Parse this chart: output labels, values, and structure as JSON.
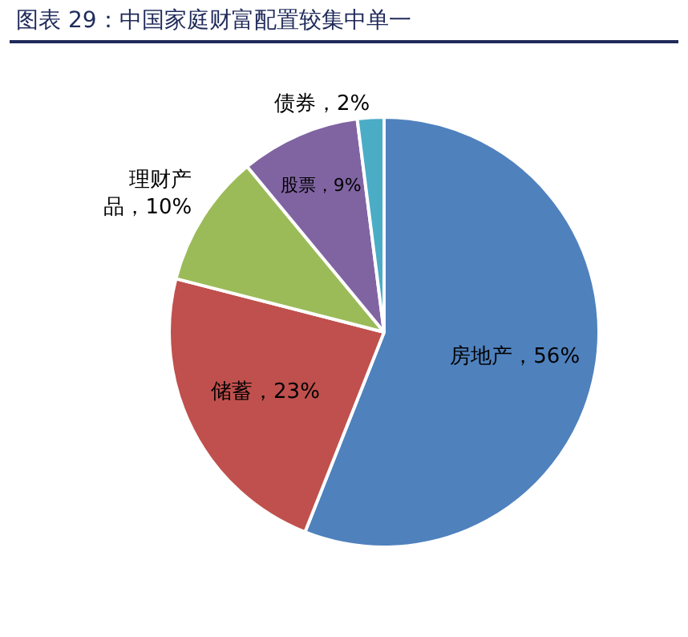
{
  "chart_data": {
    "type": "pie",
    "title": "图表 29：中国家庭财富配置较集中单一",
    "categories": [
      "房地产",
      "储蓄",
      "理财产品",
      "股票",
      "债券"
    ],
    "values": [
      56,
      23,
      10,
      9,
      2
    ],
    "value_labels": [
      "56%",
      "23%",
      "10%",
      "9%",
      "2%"
    ],
    "colors": [
      "#4f81bd",
      "#c0504d",
      "#9bbb59",
      "#8064a2",
      "#4bacc6"
    ],
    "legend": false
  }
}
